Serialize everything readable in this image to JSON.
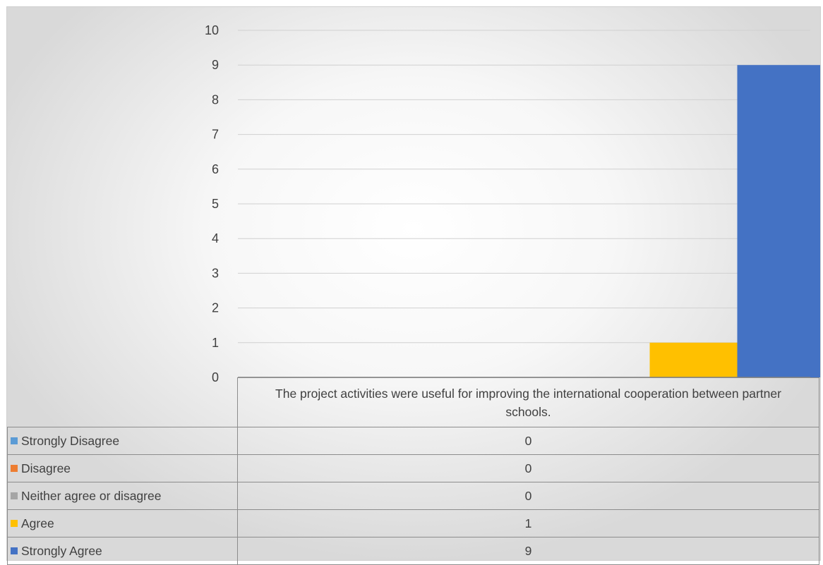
{
  "chart_data": {
    "type": "bar",
    "categories": [
      "The project activities were useful for improving the international cooperation between partner schools."
    ],
    "series": [
      {
        "name": "Strongly Disagree",
        "values": [
          0
        ],
        "color": "#5b9bd5"
      },
      {
        "name": "Disagree",
        "values": [
          0
        ],
        "color": "#ed7d31"
      },
      {
        "name": "Neither agree or disagree",
        "values": [
          0
        ],
        "color": "#a5a5a5"
      },
      {
        "name": "Agree",
        "values": [
          1
        ],
        "color": "#ffc000"
      },
      {
        "name": "Strongly Agree",
        "values": [
          9
        ],
        "color": "#4472c4"
      }
    ],
    "ylim": [
      0,
      10
    ],
    "yticks": [
      0,
      1,
      2,
      3,
      4,
      5,
      6,
      7,
      8,
      9,
      10
    ],
    "grid": true,
    "legend": "data-table",
    "title": "",
    "xlabel": "",
    "ylabel": ""
  }
}
